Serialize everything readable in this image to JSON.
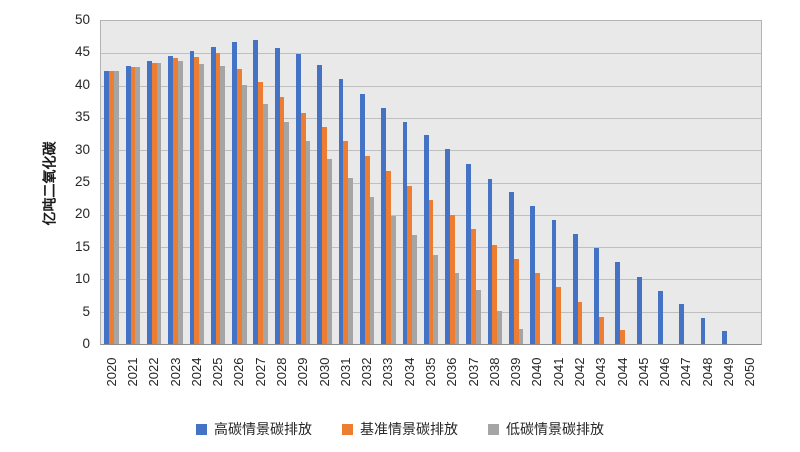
{
  "chart_data": {
    "type": "bar",
    "title": "",
    "xlabel": "",
    "ylabel": "亿吨二氧化碳",
    "ylim": [
      0,
      50
    ],
    "ytick_step": 5,
    "yticks": [
      0,
      5,
      10,
      15,
      20,
      25,
      30,
      35,
      40,
      45,
      50
    ],
    "grid": true,
    "legend_position": "bottom",
    "plot_bg_color": "#e9e9e9",
    "gridline_color": "#bfbfbf",
    "axis_line_color": "#8c8c8c",
    "categories": [
      "2020",
      "2021",
      "2022",
      "2023",
      "2024",
      "2025",
      "2026",
      "2027",
      "2028",
      "2029",
      "2030",
      "2031",
      "2032",
      "2033",
      "2034",
      "2035",
      "2036",
      "2037",
      "2038",
      "2039",
      "2040",
      "2041",
      "2042",
      "2043",
      "2044",
      "2045",
      "2046",
      "2047",
      "2048",
      "2049",
      "2050"
    ],
    "series": [
      {
        "name": "高碳情景碳排放",
        "color": "#4472C4",
        "values": [
          42.2,
          43.1,
          43.8,
          44.6,
          45.4,
          46.0,
          46.7,
          47.0,
          45.9,
          44.9,
          43.2,
          41.0,
          38.7,
          36.6,
          34.4,
          32.3,
          30.2,
          27.9,
          25.6,
          23.5,
          21.3,
          19.2,
          17.0,
          14.9,
          12.7,
          10.4,
          8.2,
          6.2,
          4.0,
          2.0,
          0
        ]
      },
      {
        "name": "基准情景碳排放",
        "color": "#ED7D31",
        "values": [
          42.2,
          42.9,
          43.5,
          44.2,
          44.4,
          45.0,
          42.5,
          40.5,
          38.2,
          35.8,
          33.6,
          31.4,
          29.1,
          26.8,
          24.5,
          22.3,
          19.9,
          17.8,
          15.4,
          13.2,
          11.0,
          8.8,
          6.5,
          4.2,
          2.1,
          0,
          0,
          0,
          0,
          0,
          0
        ]
      },
      {
        "name": "低碳情景碳排放",
        "color": "#A5A5A5",
        "values": [
          42.2,
          42.9,
          43.5,
          43.8,
          43.3,
          43.1,
          40.1,
          37.2,
          34.3,
          31.5,
          28.6,
          25.7,
          22.8,
          19.8,
          16.8,
          13.8,
          11.0,
          8.3,
          5.1,
          2.3,
          0,
          0,
          0,
          0,
          0,
          0,
          0,
          0,
          0,
          0,
          0
        ]
      }
    ]
  }
}
